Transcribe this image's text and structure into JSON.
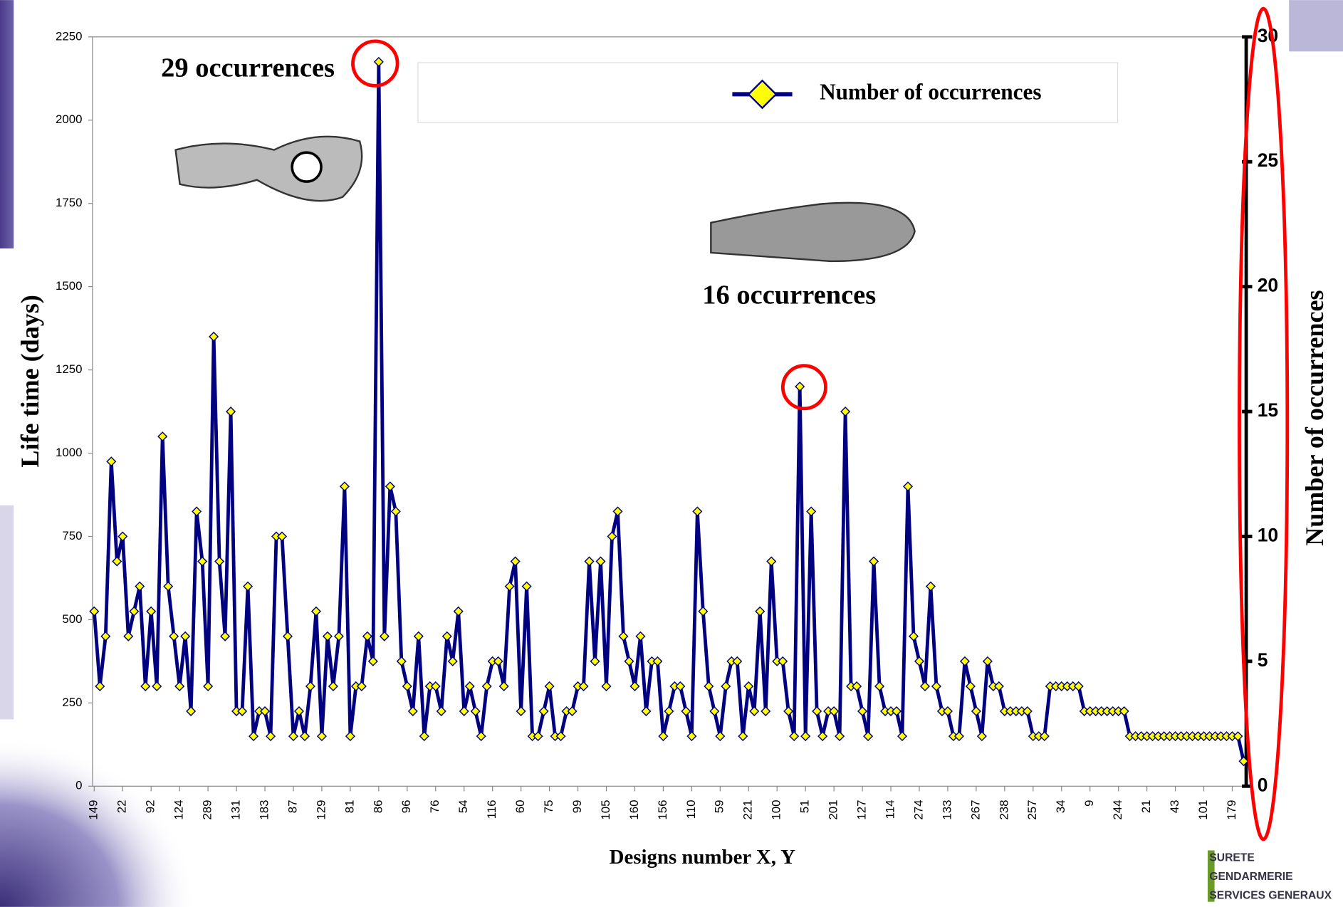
{
  "chart_data": {
    "type": "line",
    "y_label": "Life time (days)",
    "y2_label": "Number of occurrences",
    "x_label": "Designs number X, Y",
    "annotations": [
      "29 occurrences",
      "16 occurrences"
    ],
    "logo": [
      "SURETE",
      "GENDARMERIE",
      "SERVICES GENERAUX"
    ],
    "ylim": [
      0,
      2250
    ],
    "yticks": [
      0,
      250,
      500,
      750,
      1000,
      1250,
      1500,
      1750,
      2000,
      2250
    ],
    "y2lim": [
      0,
      30
    ],
    "y2ticks": [
      0,
      5,
      10,
      15,
      20,
      25,
      30
    ],
    "legend": "top-right",
    "categories": [
      "149",
      null,
      null,
      null,
      null,
      "22",
      null,
      null,
      null,
      null,
      "92",
      null,
      null,
      null,
      null,
      "124",
      null,
      null,
      null,
      null,
      "289",
      null,
      null,
      null,
      null,
      "131",
      null,
      null,
      null,
      null,
      "183",
      null,
      null,
      null,
      null,
      "87",
      null,
      null,
      null,
      null,
      "129",
      null,
      null,
      null,
      null,
      "81",
      null,
      null,
      null,
      null,
      "86",
      null,
      null,
      null,
      null,
      "96",
      null,
      null,
      null,
      null,
      "76",
      null,
      null,
      null,
      null,
      "54",
      null,
      null,
      null,
      null,
      "116",
      null,
      null,
      null,
      null,
      "60",
      null,
      null,
      null,
      null,
      "75",
      null,
      null,
      null,
      null,
      "99",
      null,
      null,
      null,
      null,
      "105",
      null,
      null,
      null,
      null,
      "160",
      null,
      null,
      null,
      null,
      "156",
      null,
      null,
      null,
      null,
      "110",
      null,
      null,
      null,
      null,
      "59",
      null,
      null,
      null,
      null,
      "221",
      null,
      null,
      null,
      null,
      "100",
      null,
      null,
      null,
      null,
      "51",
      null,
      null,
      null,
      null,
      "201",
      null,
      null,
      null,
      null,
      "127",
      null,
      null,
      null,
      null,
      "114",
      null,
      null,
      null,
      null,
      "274",
      null,
      null,
      null,
      null,
      "133",
      null,
      null,
      null,
      null,
      "267",
      null,
      null,
      null,
      null,
      "238",
      null,
      null,
      null,
      null,
      "257",
      null,
      null,
      null,
      null,
      "34",
      null,
      null,
      null,
      null,
      "9",
      null,
      null,
      null,
      null,
      "244",
      null,
      null,
      null,
      null,
      "21",
      null,
      null,
      null,
      null,
      "43",
      null,
      null,
      null,
      null,
      "101",
      null,
      null,
      null,
      null,
      "179",
      null,
      null
    ],
    "series": [
      {
        "name": "Number of occurrences",
        "color": "#000080",
        "marker_color": "#ffff00",
        "axis": "y2",
        "values": [
          7,
          4,
          6,
          13,
          9,
          10,
          6,
          7,
          8,
          4,
          7,
          4,
          14,
          8,
          6,
          4,
          6,
          3,
          11,
          9,
          4,
          18,
          9,
          6,
          15,
          3,
          3,
          8,
          2,
          3,
          3,
          2,
          10,
          10,
          6,
          2,
          3,
          2,
          4,
          7,
          2,
          6,
          4,
          6,
          12,
          2,
          4,
          4,
          6,
          5,
          29,
          6,
          12,
          11,
          5,
          4,
          3,
          6,
          2,
          4,
          4,
          3,
          6,
          5,
          7,
          3,
          4,
          3,
          2,
          4,
          5,
          5,
          4,
          8,
          9,
          3,
          8,
          2,
          2,
          3,
          4,
          2,
          2,
          3,
          3,
          4,
          4,
          9,
          5,
          9,
          4,
          10,
          11,
          6,
          5,
          4,
          6,
          3,
          5,
          5,
          2,
          3,
          4,
          4,
          3,
          2,
          11,
          7,
          4,
          3,
          2,
          4,
          5,
          5,
          2,
          4,
          3,
          7,
          3,
          9,
          5,
          5,
          3,
          2,
          16,
          2,
          11,
          3,
          2,
          3,
          3,
          2,
          15,
          4,
          4,
          3,
          2,
          9,
          4,
          3,
          3,
          3,
          2,
          12,
          6,
          5,
          4,
          8,
          4,
          3,
          3,
          2,
          2,
          5,
          4,
          3,
          2,
          5,
          4,
          4,
          3,
          3,
          3,
          3,
          3,
          2,
          2,
          2,
          4,
          4,
          4,
          4,
          4,
          4,
          3,
          3,
          3,
          3,
          3,
          3,
          3,
          3,
          2,
          2,
          2,
          2,
          2,
          2,
          2,
          2,
          2,
          2,
          2,
          2,
          2,
          2,
          2,
          2,
          2,
          2,
          2,
          2,
          1
        ]
      }
    ]
  }
}
